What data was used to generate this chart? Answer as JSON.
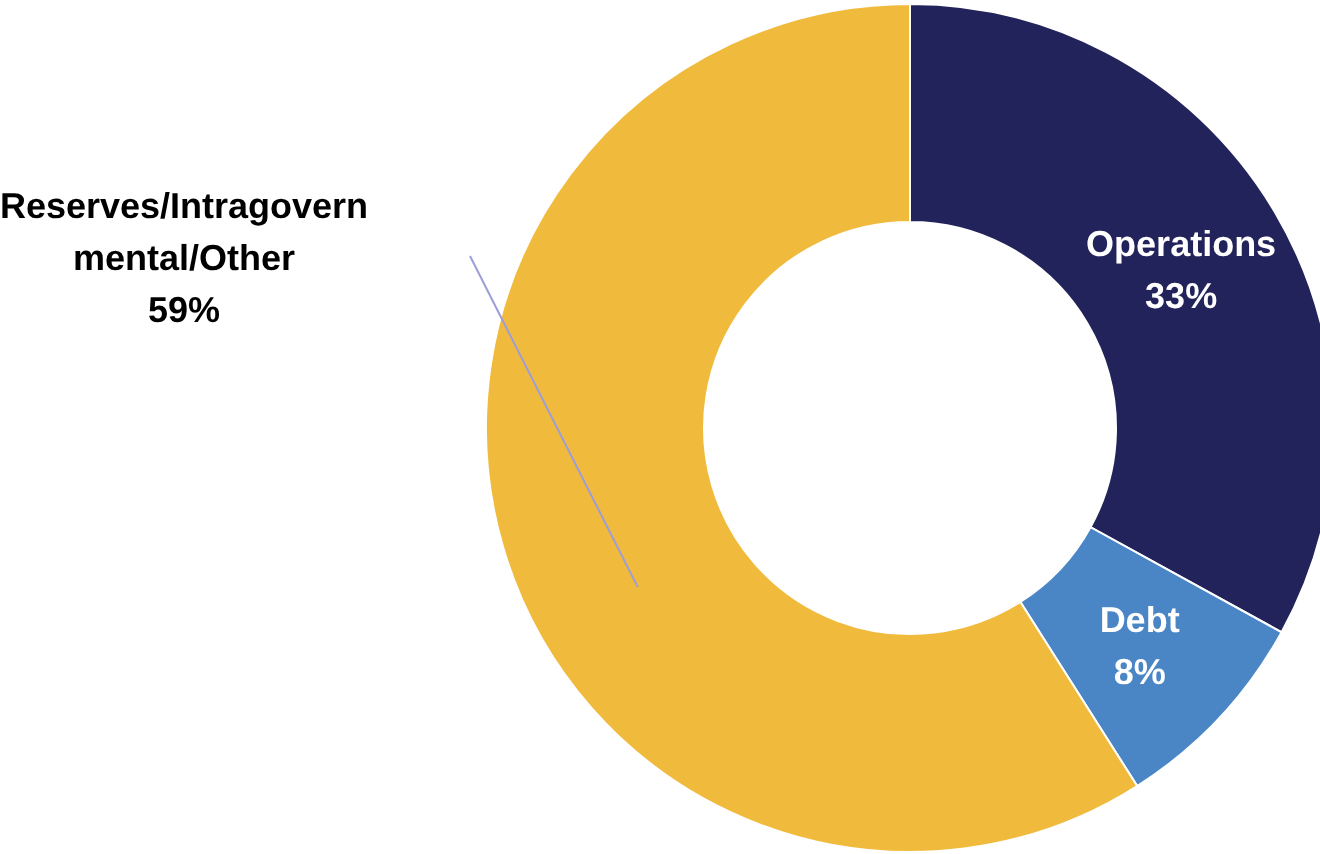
{
  "chart_data": {
    "type": "donut",
    "categories": [
      "Operations",
      "Debt",
      "Reserves/Intragovernmental/Other"
    ],
    "values": [
      33,
      8,
      59
    ],
    "value_labels": [
      "33%",
      "8%",
      "59%"
    ],
    "colors": [
      "#23235b",
      "#4a86c5",
      "#f0bb3c"
    ]
  }
}
